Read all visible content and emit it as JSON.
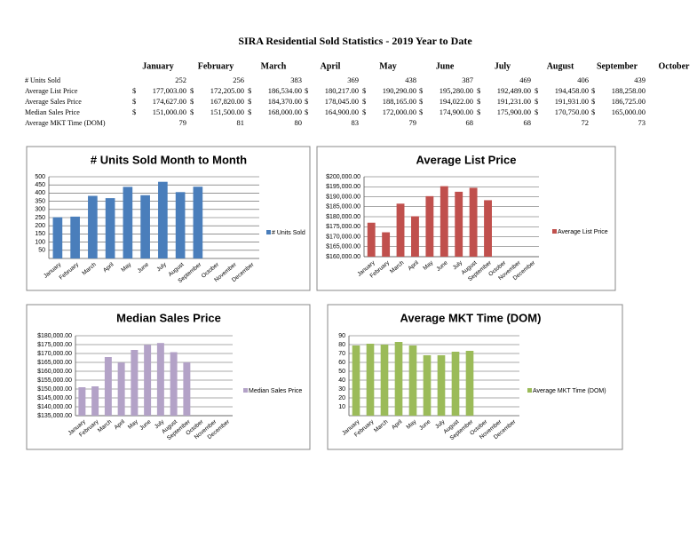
{
  "title": "SIRA Residential Sold Statistics - 2019 Year to Date",
  "table": {
    "columns": [
      "January",
      "February",
      "March",
      "April",
      "May",
      "June",
      "July",
      "August",
      "September",
      "October"
    ],
    "rows": [
      {
        "label": "# Units Sold",
        "values": [
          "252",
          "256",
          "383",
          "369",
          "438",
          "387",
          "469",
          "406",
          "439"
        ]
      },
      {
        "label": "Average List Price",
        "currency": "$",
        "values": [
          "177,003.00",
          "172,205.00",
          "186,534.00",
          "180,217.00",
          "190,290.00",
          "195,280.00",
          "192,489.00",
          "194,458.00",
          "188,258.00"
        ]
      },
      {
        "label": "Average Sales Price",
        "currency": "$",
        "values": [
          "174,627.00",
          "167,820.00",
          "184,370.00",
          "178,045.00",
          "188,165.00",
          "194,022.00",
          "191,231.00",
          "191,931.00",
          "186,725.00"
        ]
      },
      {
        "label": "Median Sales Price",
        "currency": "$",
        "values": [
          "151,000.00",
          "151,500.00",
          "168,000.00",
          "164,900.00",
          "172,000.00",
          "174,900.00",
          "175,900.00",
          "170,750.00",
          "165,000.00"
        ]
      },
      {
        "label": "Average MKT Time (DOM)",
        "values": [
          "79",
          "81",
          "80",
          "83",
          "79",
          "68",
          "68",
          "72",
          "73"
        ]
      }
    ]
  },
  "chart_data": [
    {
      "type": "bar",
      "title": "# Units Sold Month to Month",
      "categories": [
        "January",
        "February",
        "March",
        "April",
        "May",
        "June",
        "July",
        "August",
        "September",
        "October",
        "November",
        "December"
      ],
      "series": [
        {
          "name": "# Units Sold",
          "color": "#4a7ebb",
          "values": [
            252,
            256,
            383,
            369,
            438,
            387,
            469,
            406,
            439,
            null,
            null,
            null
          ]
        }
      ],
      "ylim": [
        0,
        500
      ],
      "yticks": [
        50,
        100,
        150,
        200,
        250,
        300,
        350,
        400,
        450,
        500
      ],
      "grid": true,
      "legend": "right"
    },
    {
      "type": "bar",
      "title": "Average List Price",
      "categories": [
        "January",
        "February",
        "March",
        "April",
        "May",
        "June",
        "July",
        "August",
        "September",
        "October",
        "November",
        "December"
      ],
      "series": [
        {
          "name": "Average List Price",
          "color": "#c0504d",
          "values": [
            177003,
            172205,
            186534,
            180217,
            190290,
            195280,
            192489,
            194458,
            188258,
            null,
            null,
            null
          ]
        }
      ],
      "ylim": [
        160000,
        200000
      ],
      "yticks": [
        {
          "value": 160000,
          "label": "$160,000.00"
        },
        {
          "value": 165000,
          "label": "$165,000.00"
        },
        {
          "value": 170000,
          "label": "$170,000.00"
        },
        {
          "value": 175000,
          "label": "$175,000.00"
        },
        {
          "value": 180000,
          "label": "$180,000.00"
        },
        {
          "value": 185000,
          "label": "$185,000.00"
        },
        {
          "value": 190000,
          "label": "$190,000.00"
        },
        {
          "value": 195000,
          "label": "$195,000.00"
        },
        {
          "value": 200000,
          "label": "$200,000.00"
        }
      ],
      "grid": true,
      "legend": "right"
    },
    {
      "type": "bar",
      "title": "Median Sales Price",
      "categories": [
        "January",
        "February",
        "March",
        "April",
        "May",
        "June",
        "July",
        "August",
        "September",
        "October",
        "November",
        "December"
      ],
      "series": [
        {
          "name": "Median Sales Price",
          "color": "#b3a2c7",
          "values": [
            151000,
            151500,
            168000,
            164900,
            172000,
            174900,
            175900,
            170750,
            165000,
            null,
            null,
            null
          ]
        }
      ],
      "ylim": [
        135000,
        180000
      ],
      "yticks": [
        {
          "value": 135000,
          "label": "$135,000.00"
        },
        {
          "value": 140000,
          "label": "$140,000.00"
        },
        {
          "value": 145000,
          "label": "$145,000.00"
        },
        {
          "value": 150000,
          "label": "$150,000.00"
        },
        {
          "value": 155000,
          "label": "$155,000.00"
        },
        {
          "value": 160000,
          "label": "$160,000.00"
        },
        {
          "value": 165000,
          "label": "$165,000.00"
        },
        {
          "value": 170000,
          "label": "$170,000.00"
        },
        {
          "value": 175000,
          "label": "$175,000.00"
        },
        {
          "value": 180000,
          "label": "$180,000.00"
        }
      ],
      "grid": true,
      "legend": "right"
    },
    {
      "type": "bar",
      "title": "Average MKT Time (DOM)",
      "categories": [
        "January",
        "February",
        "March",
        "April",
        "May",
        "June",
        "July",
        "August",
        "September",
        "October",
        "November",
        "December"
      ],
      "series": [
        {
          "name": "Average MKT Time (DOM)",
          "color": "#9bbb59",
          "values": [
            79,
            81,
            80,
            83,
            79,
            68,
            68,
            72,
            73,
            null,
            null,
            null
          ]
        }
      ],
      "ylim": [
        0,
        90
      ],
      "yticks": [
        10,
        20,
        30,
        40,
        50,
        60,
        70,
        80,
        90
      ],
      "grid": true,
      "legend": "right"
    }
  ]
}
